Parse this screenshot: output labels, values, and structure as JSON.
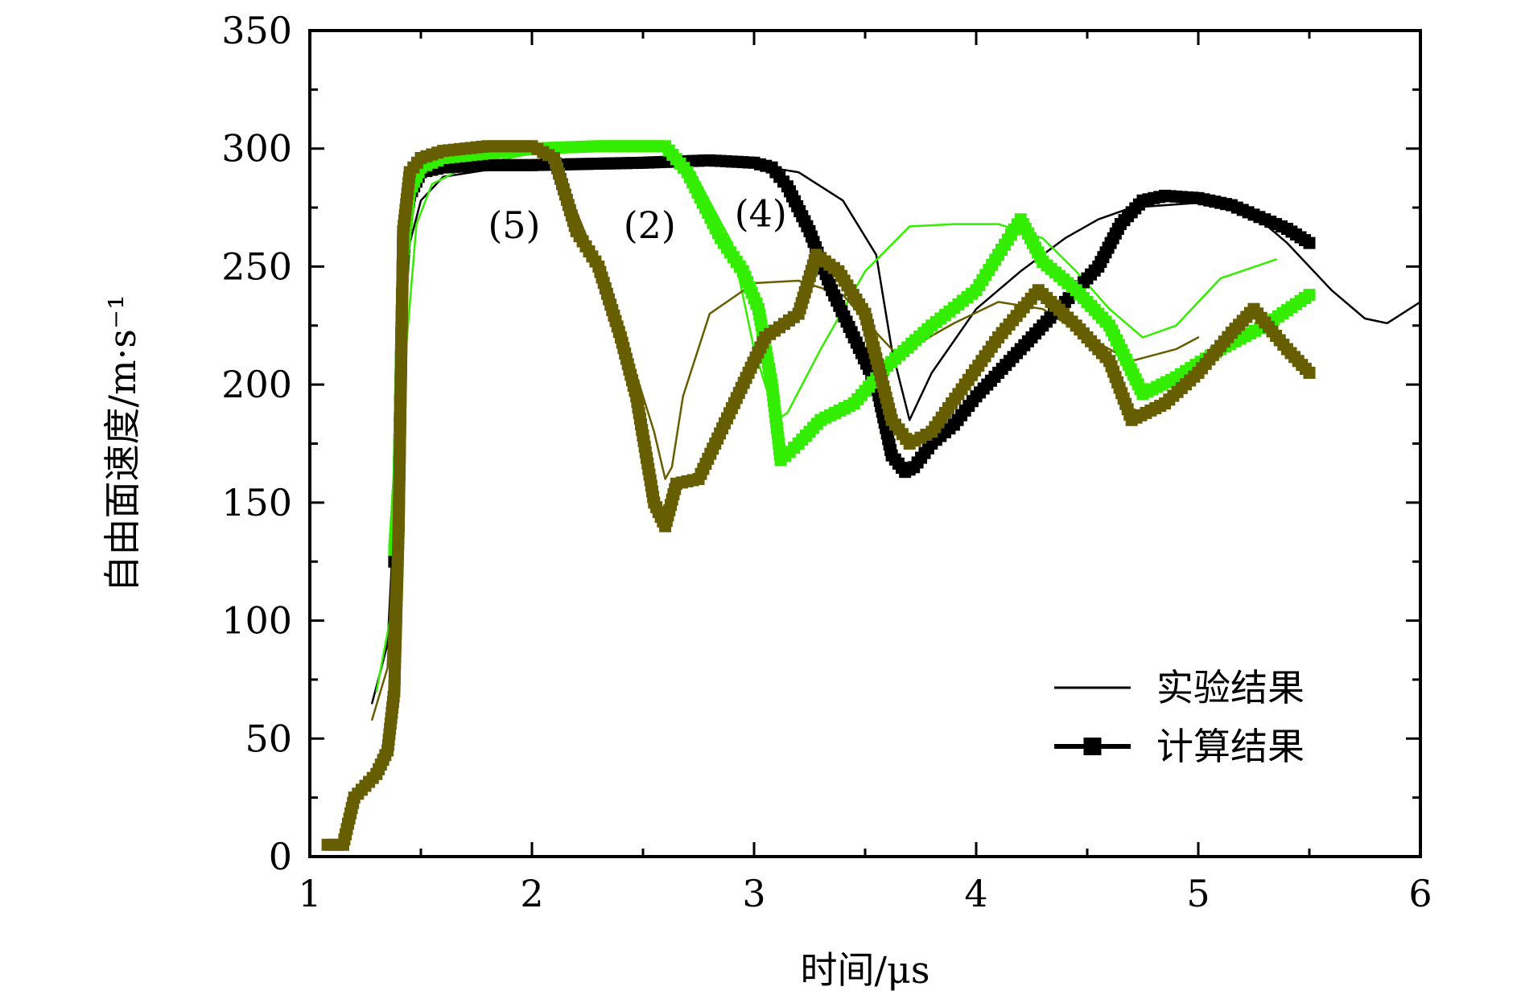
{
  "chart_data": {
    "type": "line",
    "xlabel": "时间/μs",
    "ylabel": "自由面速度/m·s⁻¹",
    "xlim": [
      1,
      6
    ],
    "ylim": [
      0,
      350
    ],
    "xticks": [
      "1",
      "2",
      "3",
      "4",
      "5",
      "6"
    ],
    "yticks": [
      "0",
      "50",
      "100",
      "150",
      "200",
      "250",
      "300",
      "350"
    ],
    "grid": false,
    "legend_position": "bottom-right",
    "legend": [
      {
        "label": "实验结果",
        "style": "line"
      },
      {
        "label": "计算结果",
        "style": "line-square"
      }
    ],
    "annotations": [
      {
        "text": "(5)",
        "x": 1.92,
        "y": 262,
        "series": "olive"
      },
      {
        "text": "(2)",
        "x": 2.53,
        "y": 262,
        "series": "green"
      },
      {
        "text": "(4)",
        "x": 3.03,
        "y": 267,
        "series": "black"
      }
    ],
    "series": [
      {
        "color": "#000000",
        "style": "experimental",
        "x": [
          1.28,
          1.35,
          1.4,
          1.45,
          1.5,
          1.6,
          1.8,
          2.0,
          2.5,
          3.0,
          3.2,
          3.4,
          3.55,
          3.62,
          3.7,
          3.8,
          4.0,
          4.2,
          4.4,
          4.55,
          4.7,
          4.85,
          5.0,
          5.2,
          5.4,
          5.6,
          5.75,
          5.85,
          6.0
        ],
        "y": [
          65,
          90,
          180,
          260,
          278,
          288,
          291,
          292,
          293,
          293,
          290,
          278,
          255,
          215,
          185,
          205,
          232,
          248,
          262,
          270,
          275,
          276,
          277,
          276,
          260,
          240,
          228,
          226,
          235
        ]
      },
      {
        "color": "#000000",
        "style": "computed",
        "x": [
          1.38,
          1.4,
          1.42,
          1.45,
          1.5,
          1.6,
          1.8,
          2.0,
          2.5,
          2.8,
          3.0,
          3.08,
          3.15,
          3.25,
          3.35,
          3.45,
          3.55,
          3.62,
          3.68,
          3.72,
          3.8,
          3.9,
          4.0,
          4.2,
          4.4,
          4.55,
          4.65,
          4.75,
          4.85,
          5.0,
          5.15,
          5.3,
          5.4,
          5.5
        ],
        "y": [
          125,
          160,
          260,
          280,
          290,
          292,
          293,
          293,
          294,
          295,
          294,
          292,
          284,
          265,
          240,
          220,
          200,
          170,
          163,
          165,
          175,
          183,
          195,
          215,
          235,
          250,
          268,
          278,
          280,
          279,
          276,
          270,
          266,
          260
        ]
      },
      {
        "color": "#33ee00",
        "style": "experimental",
        "x": [
          1.3,
          1.38,
          1.42,
          1.48,
          1.55,
          1.7,
          2.0,
          2.3,
          2.6,
          2.7,
          2.9,
          3.0,
          3.1,
          3.15,
          3.3,
          3.5,
          3.7,
          3.9,
          4.1,
          4.3,
          4.45,
          4.6,
          4.75,
          4.9,
          5.1,
          5.35
        ],
        "y": [
          70,
          110,
          200,
          268,
          285,
          292,
          298,
          300,
          301,
          295,
          260,
          215,
          185,
          188,
          215,
          248,
          267,
          268,
          268,
          262,
          248,
          232,
          220,
          225,
          245,
          253
        ]
      },
      {
        "color": "#33ee00",
        "style": "computed",
        "x": [
          1.38,
          1.4,
          1.42,
          1.45,
          1.5,
          1.6,
          1.8,
          2.0,
          2.3,
          2.6,
          2.7,
          2.85,
          2.95,
          3.02,
          3.08,
          3.12,
          3.2,
          3.3,
          3.45,
          3.6,
          3.8,
          4.0,
          4.1,
          4.2,
          4.3,
          4.45,
          4.6,
          4.75,
          4.9,
          5.1,
          5.3,
          5.5
        ],
        "y": [
          130,
          160,
          255,
          282,
          292,
          296,
          298,
          300,
          301,
          301,
          290,
          262,
          248,
          232,
          200,
          168,
          175,
          185,
          192,
          208,
          225,
          240,
          255,
          270,
          252,
          240,
          225,
          196,
          203,
          215,
          225,
          238
        ]
      },
      {
        "color": "#665e00",
        "style": "experimental",
        "x": [
          1.28,
          1.35,
          1.4,
          1.45,
          1.5,
          1.6,
          1.8,
          2.0,
          2.15,
          2.3,
          2.45,
          2.55,
          2.6,
          2.63,
          2.68,
          2.8,
          3.0,
          3.2,
          3.4,
          3.55,
          3.65,
          3.75,
          3.9,
          4.1,
          4.3,
          4.5,
          4.7,
          4.9,
          5.0
        ],
        "y": [
          58,
          80,
          180,
          268,
          290,
          296,
          299,
          300,
          285,
          250,
          210,
          180,
          160,
          165,
          195,
          230,
          243,
          244,
          238,
          222,
          212,
          218,
          226,
          235,
          232,
          220,
          210,
          215,
          220
        ]
      },
      {
        "color": "#665e00",
        "style": "computed",
        "x": [
          1.08,
          1.15,
          1.2,
          1.25,
          1.3,
          1.35,
          1.38,
          1.4,
          1.42,
          1.45,
          1.5,
          1.6,
          1.8,
          2.0,
          2.1,
          2.2,
          2.3,
          2.4,
          2.47,
          2.55,
          2.6,
          2.65,
          2.75,
          2.9,
          3.05,
          3.2,
          3.28,
          3.38,
          3.5,
          3.62,
          3.7,
          3.8,
          3.95,
          4.1,
          4.28,
          4.45,
          4.6,
          4.7,
          4.85,
          5.0,
          5.15,
          5.25,
          5.4,
          5.5
        ],
        "y": [
          5,
          5,
          25,
          30,
          35,
          45,
          70,
          140,
          265,
          290,
          296,
          299,
          301,
          301,
          296,
          265,
          250,
          220,
          195,
          150,
          140,
          158,
          160,
          190,
          220,
          230,
          255,
          248,
          230,
          185,
          175,
          180,
          200,
          220,
          240,
          225,
          210,
          185,
          192,
          205,
          222,
          232,
          215,
          205
        ]
      }
    ]
  }
}
